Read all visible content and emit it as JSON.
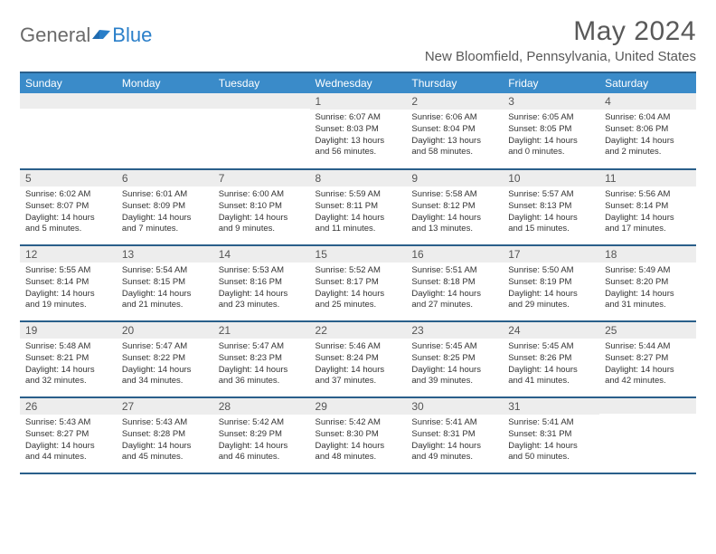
{
  "logo": {
    "part1": "General",
    "part2": "Blue"
  },
  "title": "May 2024",
  "location": "New Bloomfield, Pennsylvania, United States",
  "colors": {
    "header_bg": "#3a8bc9",
    "header_border": "#2a5f8a",
    "daynum_bg": "#ededed",
    "text": "#333333"
  },
  "weekdays": [
    "Sunday",
    "Monday",
    "Tuesday",
    "Wednesday",
    "Thursday",
    "Friday",
    "Saturday"
  ],
  "weeks": [
    [
      null,
      null,
      null,
      {
        "n": "1",
        "sr": "6:07 AM",
        "ss": "8:03 PM",
        "dl": "13 hours and 56 minutes."
      },
      {
        "n": "2",
        "sr": "6:06 AM",
        "ss": "8:04 PM",
        "dl": "13 hours and 58 minutes."
      },
      {
        "n": "3",
        "sr": "6:05 AM",
        "ss": "8:05 PM",
        "dl": "14 hours and 0 minutes."
      },
      {
        "n": "4",
        "sr": "6:04 AM",
        "ss": "8:06 PM",
        "dl": "14 hours and 2 minutes."
      }
    ],
    [
      {
        "n": "5",
        "sr": "6:02 AM",
        "ss": "8:07 PM",
        "dl": "14 hours and 5 minutes."
      },
      {
        "n": "6",
        "sr": "6:01 AM",
        "ss": "8:09 PM",
        "dl": "14 hours and 7 minutes."
      },
      {
        "n": "7",
        "sr": "6:00 AM",
        "ss": "8:10 PM",
        "dl": "14 hours and 9 minutes."
      },
      {
        "n": "8",
        "sr": "5:59 AM",
        "ss": "8:11 PM",
        "dl": "14 hours and 11 minutes."
      },
      {
        "n": "9",
        "sr": "5:58 AM",
        "ss": "8:12 PM",
        "dl": "14 hours and 13 minutes."
      },
      {
        "n": "10",
        "sr": "5:57 AM",
        "ss": "8:13 PM",
        "dl": "14 hours and 15 minutes."
      },
      {
        "n": "11",
        "sr": "5:56 AM",
        "ss": "8:14 PM",
        "dl": "14 hours and 17 minutes."
      }
    ],
    [
      {
        "n": "12",
        "sr": "5:55 AM",
        "ss": "8:14 PM",
        "dl": "14 hours and 19 minutes."
      },
      {
        "n": "13",
        "sr": "5:54 AM",
        "ss": "8:15 PM",
        "dl": "14 hours and 21 minutes."
      },
      {
        "n": "14",
        "sr": "5:53 AM",
        "ss": "8:16 PM",
        "dl": "14 hours and 23 minutes."
      },
      {
        "n": "15",
        "sr": "5:52 AM",
        "ss": "8:17 PM",
        "dl": "14 hours and 25 minutes."
      },
      {
        "n": "16",
        "sr": "5:51 AM",
        "ss": "8:18 PM",
        "dl": "14 hours and 27 minutes."
      },
      {
        "n": "17",
        "sr": "5:50 AM",
        "ss": "8:19 PM",
        "dl": "14 hours and 29 minutes."
      },
      {
        "n": "18",
        "sr": "5:49 AM",
        "ss": "8:20 PM",
        "dl": "14 hours and 31 minutes."
      }
    ],
    [
      {
        "n": "19",
        "sr": "5:48 AM",
        "ss": "8:21 PM",
        "dl": "14 hours and 32 minutes."
      },
      {
        "n": "20",
        "sr": "5:47 AM",
        "ss": "8:22 PM",
        "dl": "14 hours and 34 minutes."
      },
      {
        "n": "21",
        "sr": "5:47 AM",
        "ss": "8:23 PM",
        "dl": "14 hours and 36 minutes."
      },
      {
        "n": "22",
        "sr": "5:46 AM",
        "ss": "8:24 PM",
        "dl": "14 hours and 37 minutes."
      },
      {
        "n": "23",
        "sr": "5:45 AM",
        "ss": "8:25 PM",
        "dl": "14 hours and 39 minutes."
      },
      {
        "n": "24",
        "sr": "5:45 AM",
        "ss": "8:26 PM",
        "dl": "14 hours and 41 minutes."
      },
      {
        "n": "25",
        "sr": "5:44 AM",
        "ss": "8:27 PM",
        "dl": "14 hours and 42 minutes."
      }
    ],
    [
      {
        "n": "26",
        "sr": "5:43 AM",
        "ss": "8:27 PM",
        "dl": "14 hours and 44 minutes."
      },
      {
        "n": "27",
        "sr": "5:43 AM",
        "ss": "8:28 PM",
        "dl": "14 hours and 45 minutes."
      },
      {
        "n": "28",
        "sr": "5:42 AM",
        "ss": "8:29 PM",
        "dl": "14 hours and 46 minutes."
      },
      {
        "n": "29",
        "sr": "5:42 AM",
        "ss": "8:30 PM",
        "dl": "14 hours and 48 minutes."
      },
      {
        "n": "30",
        "sr": "5:41 AM",
        "ss": "8:31 PM",
        "dl": "14 hours and 49 minutes."
      },
      {
        "n": "31",
        "sr": "5:41 AM",
        "ss": "8:31 PM",
        "dl": "14 hours and 50 minutes."
      },
      null
    ]
  ],
  "labels": {
    "sunrise": "Sunrise:",
    "sunset": "Sunset:",
    "daylight": "Daylight:"
  }
}
